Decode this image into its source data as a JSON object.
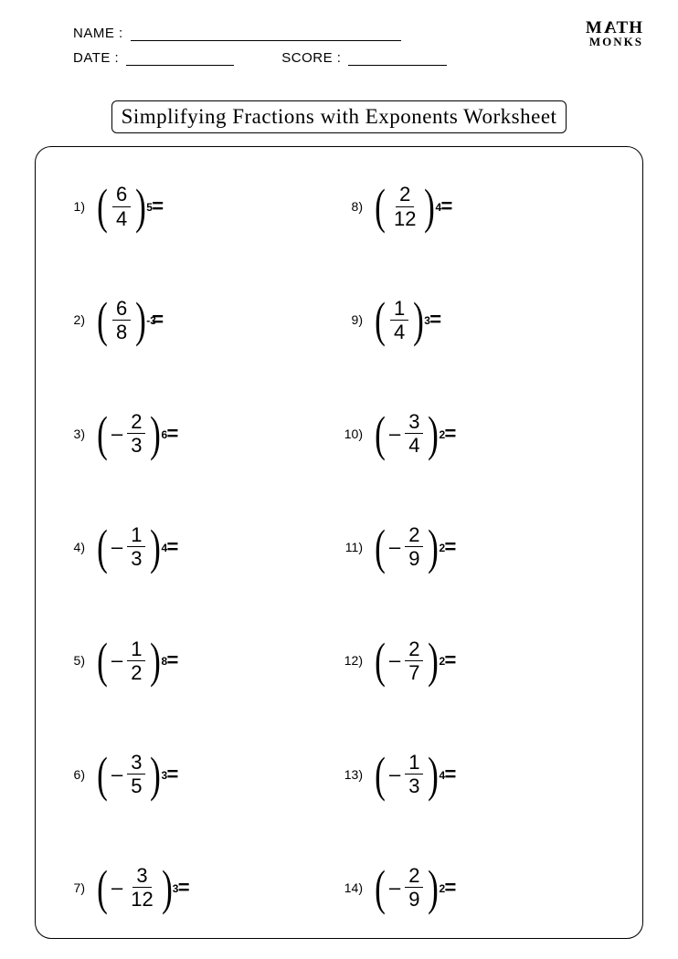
{
  "header": {
    "name_label": "NAME :",
    "date_label": "DATE :",
    "score_label": "SCORE :",
    "name_underline_width": 296,
    "date_underline_width": 118,
    "score_underline_width": 108,
    "logo_line1": "M",
    "logo_a_flip": "A",
    "logo_line1b": "TH",
    "logo_line2": "MONKS"
  },
  "title": "Simplifying Fractions with Exponents Worksheet",
  "equals": "=",
  "neg_sign": "–",
  "problems_left": [
    {
      "n": "1)",
      "neg": false,
      "num": "6",
      "den": "4",
      "exp": "5"
    },
    {
      "n": "2)",
      "neg": false,
      "num": "6",
      "den": "8",
      "exp": "-3"
    },
    {
      "n": "3)",
      "neg": true,
      "num": "2",
      "den": "3",
      "exp": "6"
    },
    {
      "n": "4)",
      "neg": true,
      "num": "1",
      "den": "3",
      "exp": "4"
    },
    {
      "n": "5)",
      "neg": true,
      "num": "1",
      "den": "2",
      "exp": "8"
    },
    {
      "n": "6)",
      "neg": true,
      "num": "3",
      "den": "5",
      "exp": "3"
    },
    {
      "n": "7)",
      "neg": true,
      "num": "3",
      "den": "12",
      "exp": "3"
    }
  ],
  "problems_right": [
    {
      "n": "8)",
      "neg": false,
      "num": "2",
      "den": "12",
      "exp": "4"
    },
    {
      "n": "9)",
      "neg": false,
      "num": "1",
      "den": "4",
      "exp": "3"
    },
    {
      "n": "10)",
      "neg": true,
      "num": "3",
      "den": "4",
      "exp": "2"
    },
    {
      "n": "11)",
      "neg": true,
      "num": "2",
      "den": "9",
      "exp": "2"
    },
    {
      "n": "12)",
      "neg": true,
      "num": "2",
      "den": "7",
      "exp": "2"
    },
    {
      "n": "13)",
      "neg": true,
      "num": "1",
      "den": "3",
      "exp": "4"
    },
    {
      "n": "14)",
      "neg": true,
      "num": "2",
      "den": "9",
      "exp": "2"
    }
  ],
  "colors": {
    "text": "#000000",
    "background": "#ffffff",
    "border": "#000000"
  }
}
